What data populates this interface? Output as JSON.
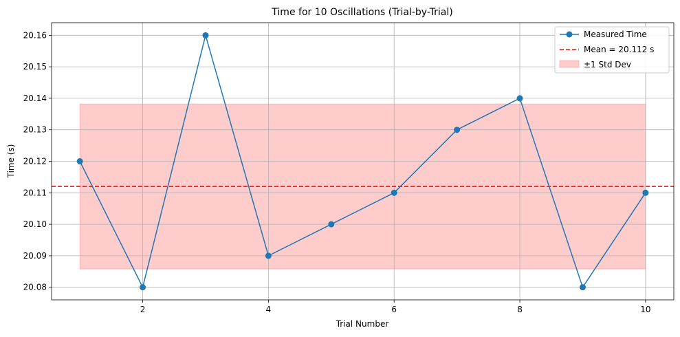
{
  "chart_data": {
    "type": "line",
    "title": "Time for 10 Oscillations (Trial-by-Trial)",
    "xlabel": "Trial Number",
    "ylabel": "Time (s)",
    "x": [
      1,
      2,
      3,
      4,
      5,
      6,
      7,
      8,
      9,
      10
    ],
    "series": [
      {
        "name": "Measured Time",
        "values": [
          20.12,
          20.08,
          20.16,
          20.09,
          20.1,
          20.11,
          20.13,
          20.14,
          20.08,
          20.11
        ],
        "color": "#1f77b4",
        "marker": "circle"
      }
    ],
    "mean_line": {
      "label": "Mean = 20.112 s",
      "value": 20.112,
      "color": "#ff0000",
      "style": "dashed"
    },
    "std_band": {
      "label": "±1 Std Dev",
      "lower": 20.0858,
      "upper": 20.1382,
      "x_range": [
        1,
        10
      ],
      "color": "#ff0000",
      "alpha": 0.2
    },
    "xlim": [
      0.55,
      10.45
    ],
    "ylim": [
      20.076,
      20.164
    ],
    "xticks": [
      2,
      4,
      6,
      8,
      10
    ],
    "xtick_labels": [
      "2",
      "4",
      "6",
      "8",
      "10"
    ],
    "yticks": [
      20.08,
      20.09,
      20.1,
      20.11,
      20.12,
      20.13,
      20.14,
      20.15,
      20.16
    ],
    "ytick_labels": [
      "20.08",
      "20.09",
      "20.10",
      "20.11",
      "20.12",
      "20.13",
      "20.14",
      "20.15",
      "20.16"
    ],
    "grid": true,
    "legend_position": "top-right"
  }
}
